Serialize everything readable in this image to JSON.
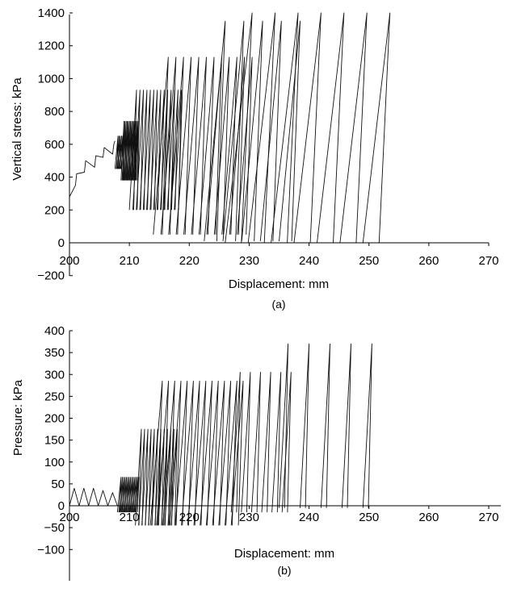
{
  "chart_data": [
    {
      "type": "line",
      "panel_label": "(a)",
      "xlabel": "Displacement: mm",
      "ylabel": "Vertical stress: kPa",
      "xlim": [
        200,
        270
      ],
      "ylim": [
        -200,
        1400
      ],
      "xticks": [
        200,
        210,
        220,
        230,
        240,
        250,
        260,
        270
      ],
      "yticks": [
        -200,
        0,
        200,
        400,
        600,
        800,
        1000,
        1200,
        1400
      ],
      "grid": false,
      "legend": "none",
      "initial_staircase": {
        "x": [
          200,
          201,
          201.2,
          202.5,
          202.7,
          204.2,
          204.4,
          205.6,
          205.8,
          207.2,
          207.4,
          207.6
        ],
        "y": [
          280,
          350,
          420,
          430,
          500,
          460,
          530,
          520,
          580,
          540,
          600,
          620
        ]
      },
      "cycle_groups": [
        {
          "x_start": 207.6,
          "x_end": 208.6,
          "count": 6,
          "y_min": 450,
          "y_max": 650,
          "lean": 0.5
        },
        {
          "x_start": 208.6,
          "x_end": 211.0,
          "count": 14,
          "y_min": 380,
          "y_max": 740,
          "lean": 0.5
        },
        {
          "x_start": 210.0,
          "x_end": 217.5,
          "count": 14,
          "y_min": 200,
          "y_max": 930,
          "lean": 1.2
        },
        {
          "x_start": 214.0,
          "x_end": 228.0,
          "count": 12,
          "y_min": 50,
          "y_max": 1130,
          "lean": 2.5
        },
        {
          "x_start": 222.5,
          "x_end": 235.0,
          "count": 5,
          "y_min": 10,
          "y_max": 1350,
          "lean": 3.5
        },
        {
          "x_start": 226.0,
          "x_end": 249.0,
          "count": 7,
          "y_min": 0,
          "y_max": 1400,
          "lean": 4.5
        }
      ]
    },
    {
      "type": "line",
      "panel_label": "(b)",
      "xlabel": "Displacement: mm",
      "ylabel": "Pressure: kPa",
      "xlim": [
        200,
        270
      ],
      "ylim": [
        -100,
        400
      ],
      "xticks": [
        200,
        210,
        220,
        230,
        240,
        250,
        260,
        270
      ],
      "yticks": [
        -100,
        -50,
        0,
        50,
        100,
        150,
        200,
        250,
        300,
        350,
        400
      ],
      "grid": false,
      "legend": "none",
      "initial_sawtooth": {
        "x": [
          200,
          200.8,
          201.6,
          202.4,
          203.2,
          204.0,
          204.8,
          205.6,
          206.4,
          207.2,
          208.0
        ],
        "y": [
          0,
          40,
          0,
          40,
          0,
          40,
          0,
          35,
          0,
          30,
          0
        ]
      },
      "cycle_groups": [
        {
          "x_start": 208.0,
          "x_end": 211.0,
          "count": 14,
          "y_min": -15,
          "y_max": 65,
          "lean": 0.6
        },
        {
          "x_start": 211.0,
          "x_end": 217.0,
          "count": 12,
          "y_min": -45,
          "y_max": 175,
          "lean": 1.0
        },
        {
          "x_start": 213.5,
          "x_end": 227.0,
          "count": 14,
          "y_min": -45,
          "y_max": 285,
          "lean": 2.0
        },
        {
          "x_start": 227.0,
          "x_end": 235.5,
          "count": 6,
          "y_min": -15,
          "y_max": 305,
          "lean": 1.5
        },
        {
          "x_start": 235.0,
          "x_end": 249.0,
          "count": 5,
          "y_min": -5,
          "y_max": 370,
          "lean": 1.5
        }
      ]
    }
  ]
}
